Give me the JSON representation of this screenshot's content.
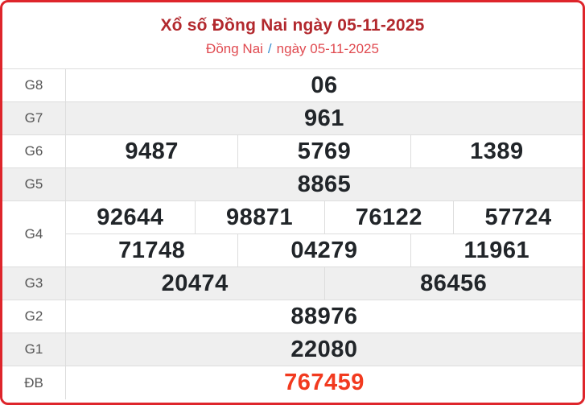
{
  "header": {
    "title": "Xổ số Đồng Nai ngày 05-11-2025",
    "breadcrumb": {
      "region": "Đồng Nai",
      "separator": "/",
      "date": "ngày 05-11-2025"
    }
  },
  "results": {
    "rows": [
      {
        "label": "G8",
        "numbers": [
          "06"
        ]
      },
      {
        "label": "G7",
        "numbers": [
          "961"
        ]
      },
      {
        "label": "G6",
        "numbers": [
          "9487",
          "5769",
          "1389"
        ]
      },
      {
        "label": "G5",
        "numbers": [
          "8865"
        ]
      },
      {
        "label": "G4",
        "lines": [
          [
            "92644",
            "98871",
            "76122",
            "57724"
          ],
          [
            "71748",
            "04279",
            "11961"
          ]
        ]
      },
      {
        "label": "G3",
        "numbers": [
          "20474",
          "86456"
        ]
      },
      {
        "label": "G2",
        "numbers": [
          "88976"
        ]
      },
      {
        "label": "G1",
        "numbers": [
          "22080"
        ]
      },
      {
        "label": "ĐB",
        "numbers": [
          "767459"
        ]
      }
    ]
  },
  "colors": {
    "title_red": "#b2282d",
    "breadcrumb_link": "#e04a50",
    "breadcrumb_separator": "#3a8fd0",
    "special_number": "#f23a1f",
    "card_border": "#de252b",
    "alt_row_bg": "#efefef",
    "number_text": "#212529",
    "label_text": "#555555",
    "grid_line": "#dddddd"
  }
}
